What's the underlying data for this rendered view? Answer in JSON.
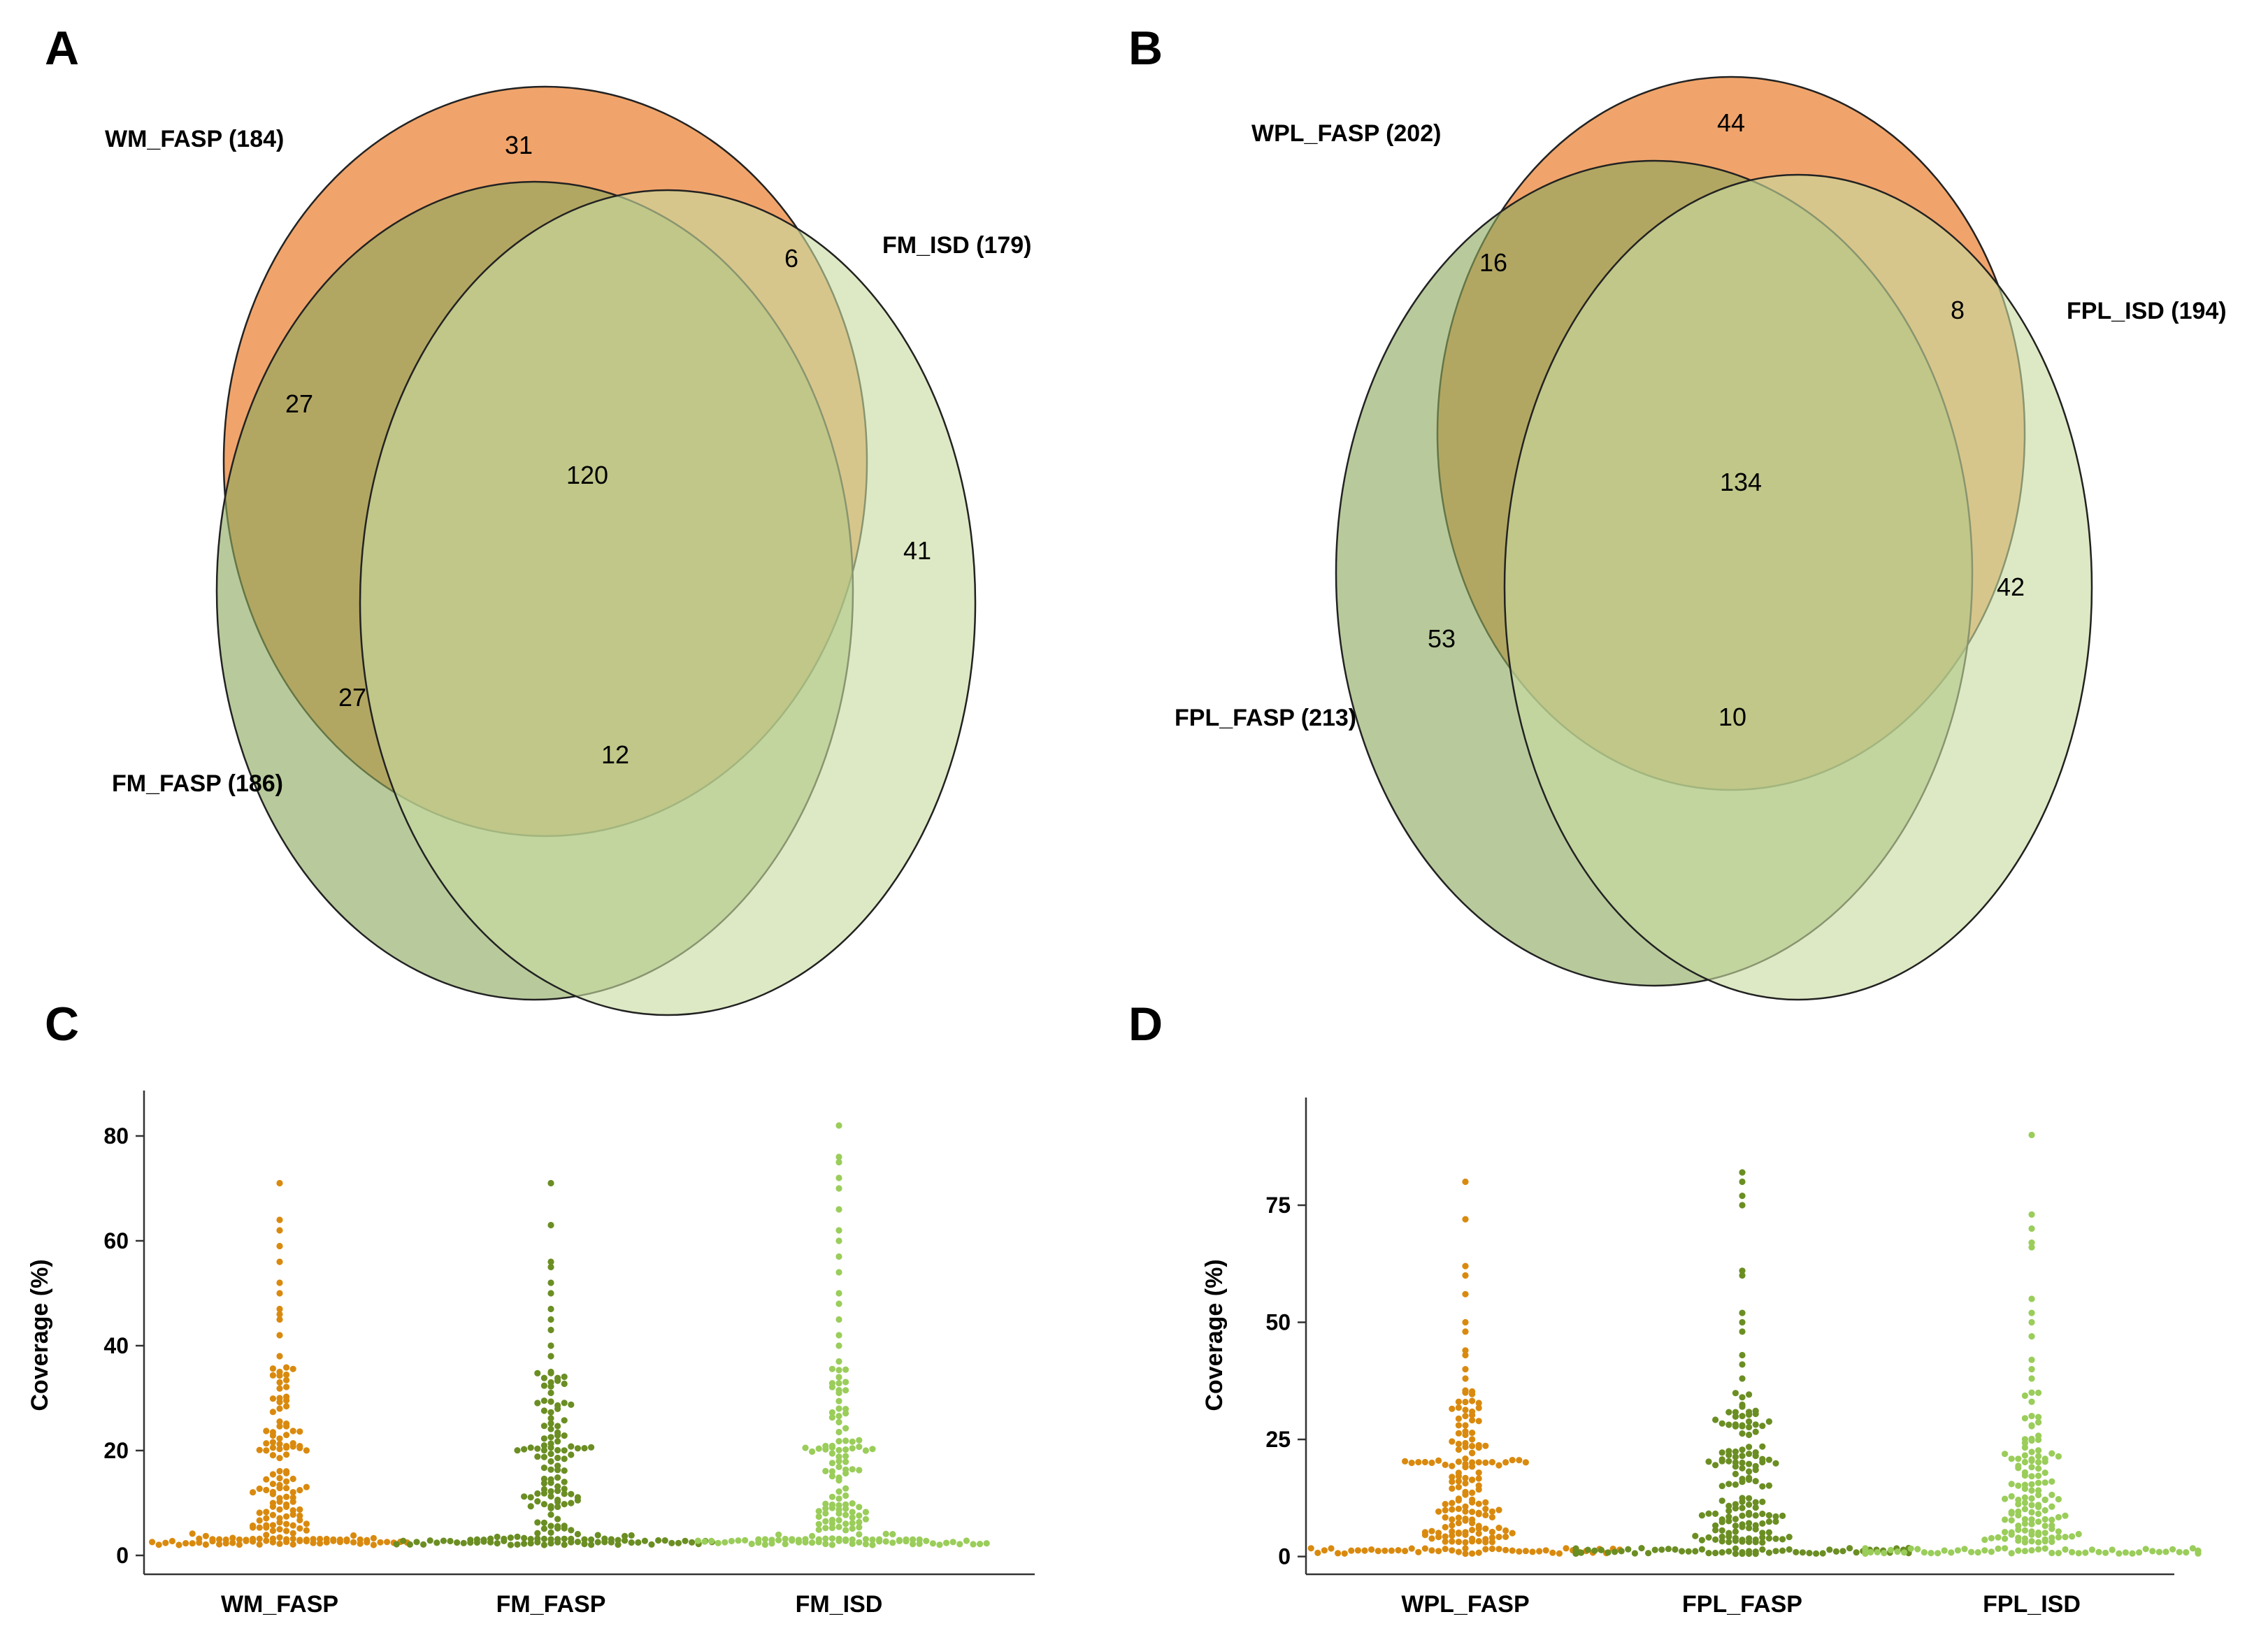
{
  "venn_panels": [
    {
      "letter": "A",
      "sets": [
        {
          "name": "WM_FASP",
          "label": "WM_FASP (184)",
          "color": "#EE9A5B"
        },
        {
          "name": "FM_FASP",
          "label": "FM_FASP (186)",
          "color": "#98B26C"
        },
        {
          "name": "FM_ISD",
          "label": "FM_ISD (179)",
          "color": "#C8DCA0"
        }
      ],
      "regions": {
        "WM_FASP_only": "31",
        "WM_FASP_FM_ISD": "6",
        "WM_FASP_FM_FASP": "27",
        "all_three": "120",
        "FM_ISD_only": "41",
        "FM_FASP_only": "27",
        "FM_FASP_FM_ISD": "12"
      }
    },
    {
      "letter": "B",
      "sets": [
        {
          "name": "WPL_FASP",
          "label": "WPL_FASP (202)",
          "color": "#EE9A5B"
        },
        {
          "name": "FPL_FASP",
          "label": "FPL_FASP (213)",
          "color": "#98B26C"
        },
        {
          "name": "FPL_ISD",
          "label": "FPL_ISD (194)",
          "color": "#C8DCA0"
        }
      ],
      "regions": {
        "WPL_FASP_only": "44",
        "WPL_FASP_FPL_FASP": "16",
        "WPL_FASP_FPL_ISD": "8",
        "all_three": "134",
        "FPL_ISD_only": "42",
        "FPL_FASP_only": "53",
        "FPL_FASP_FPL_ISD": "10"
      }
    }
  ],
  "chart_data": [
    {
      "type": "scatter",
      "subtype": "beeswarm",
      "letter": "C",
      "title": "",
      "xlabel": "",
      "ylabel": "Coverage (%)",
      "ylim": [
        -2,
        86
      ],
      "yticks": [
        0,
        20,
        40,
        60,
        80
      ],
      "categories": [
        "WM_FASP",
        "FM_FASP",
        "FM_ISD"
      ],
      "colors": [
        "#D98A0E",
        "#6B8E23",
        "#9ACD5A"
      ],
      "series": [
        {
          "name": "WM_FASP",
          "n": 184,
          "highlights": [
            71,
            64,
            62,
            59,
            56,
            52,
            50,
            47,
            46,
            45,
            42,
            38,
            35,
            33,
            30,
            28
          ]
        },
        {
          "name": "FM_FASP",
          "n": 186,
          "highlights": [
            71,
            63,
            56,
            55,
            52,
            50,
            47,
            45,
            43,
            40,
            38,
            35,
            33,
            31
          ]
        },
        {
          "name": "FM_ISD",
          "n": 179,
          "highlights": [
            82,
            76,
            75,
            72,
            70,
            66,
            62,
            60,
            57,
            54,
            50,
            48,
            45,
            42,
            40,
            37,
            34,
            31,
            28
          ]
        }
      ]
    },
    {
      "type": "scatter",
      "subtype": "beeswarm",
      "letter": "D",
      "title": "",
      "xlabel": "",
      "ylabel": "Coverage (%)",
      "ylim": [
        -2,
        95
      ],
      "yticks": [
        0,
        25,
        50,
        75
      ],
      "categories": [
        "WPL_FASP",
        "FPL_FASP",
        "FPL_ISD"
      ],
      "colors": [
        "#D98A0E",
        "#6B8E23",
        "#9ACD5A"
      ],
      "series": [
        {
          "name": "WPL_FASP",
          "n": 202,
          "highlights": [
            80,
            72,
            62,
            60,
            56,
            50,
            48,
            44,
            43,
            40,
            38,
            35,
            33,
            30,
            28
          ]
        },
        {
          "name": "FPL_FASP",
          "n": 213,
          "highlights": [
            82,
            80,
            77,
            75,
            61,
            60,
            52,
            50,
            48,
            43,
            41,
            38,
            34,
            32,
            30,
            28
          ]
        },
        {
          "name": "FPL_ISD",
          "n": 194,
          "highlights": [
            90,
            73,
            70,
            67,
            66,
            55,
            52,
            50,
            47,
            42,
            40,
            38,
            35,
            30,
            28
          ]
        }
      ]
    }
  ]
}
